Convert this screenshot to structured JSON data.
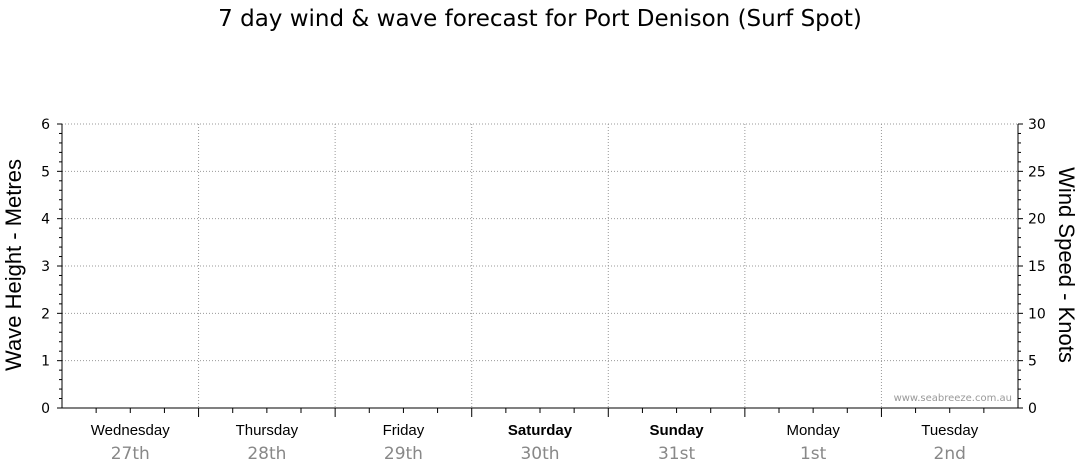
{
  "chart_data": {
    "type": "line",
    "title": "7 day wind & wave forecast for Port Denison (Surf Spot)",
    "ylabel": "Wave Height - Metres",
    "y2label": "Wind Speed - Knots",
    "ylim": [
      0,
      6
    ],
    "y2lim": [
      0,
      30
    ],
    "yticks": [
      "0",
      "1",
      "2",
      "3",
      "4",
      "5",
      "6"
    ],
    "y2ticks": [
      "0",
      "5",
      "10",
      "15",
      "20",
      "25",
      "30"
    ],
    "days": [
      {
        "name": "Wednesday",
        "date": "27th",
        "weekend": false
      },
      {
        "name": "Thursday",
        "date": "28th",
        "weekend": false
      },
      {
        "name": "Friday",
        "date": "29th",
        "weekend": false
      },
      {
        "name": "Saturday",
        "date": "30th",
        "weekend": true
      },
      {
        "name": "Sunday",
        "date": "31st",
        "weekend": true
      },
      {
        "name": "Monday",
        "date": "1st",
        "weekend": false
      },
      {
        "name": "Tuesday",
        "date": "2nd",
        "weekend": false
      }
    ],
    "series": [],
    "grid": true,
    "watermark": "www.seabreeze.com.au",
    "colors": {
      "grid": "#999999",
      "axis": "#000000",
      "date": "#888888",
      "watermark": "#999999"
    }
  }
}
